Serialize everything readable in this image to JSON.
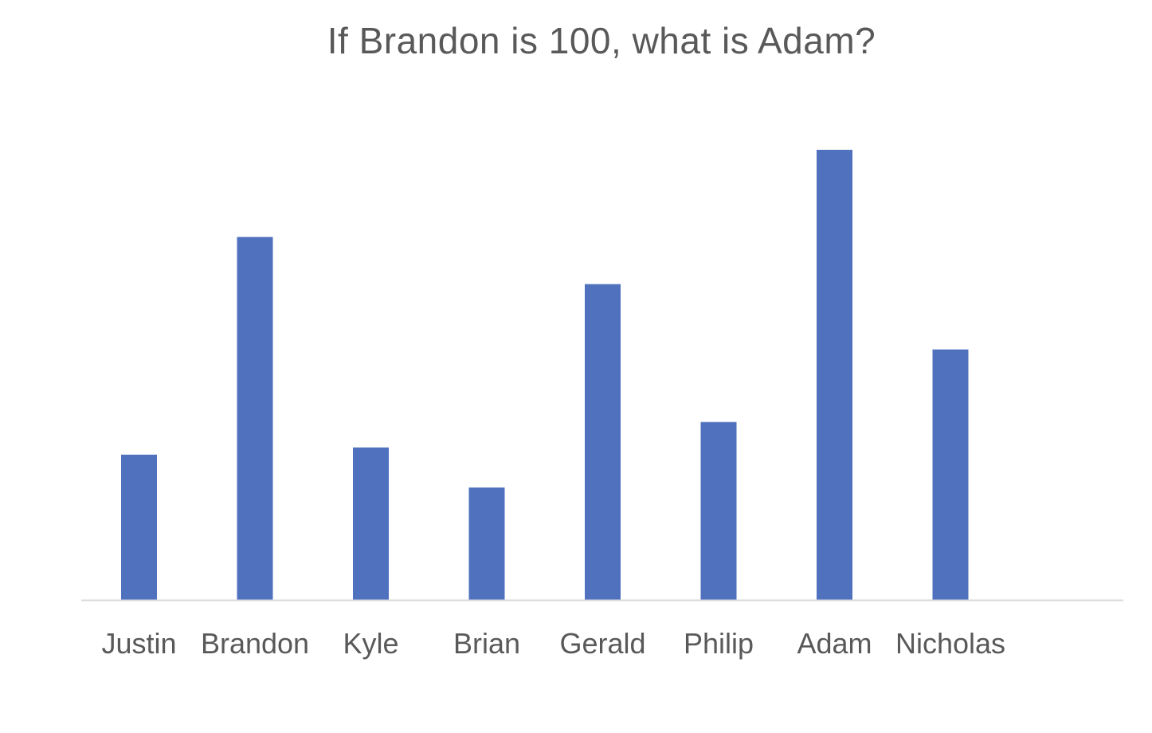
{
  "chart_data": {
    "type": "bar",
    "title": "If Brandon is 100, what is Adam?",
    "categories": [
      "Justin",
      "Brandon",
      "Kyle",
      "Brian",
      "Gerald",
      "Philip",
      "Adam",
      "Nicholas"
    ],
    "values": [
      40,
      100,
      42,
      31,
      87,
      49,
      124,
      69
    ],
    "xlabel": "",
    "ylabel": "",
    "ylim": [
      0,
      135
    ],
    "grid": false,
    "legend": "none",
    "bar_color": "#4F71BE",
    "axis_color": "#D9D9D9",
    "text_color": "#595959"
  }
}
